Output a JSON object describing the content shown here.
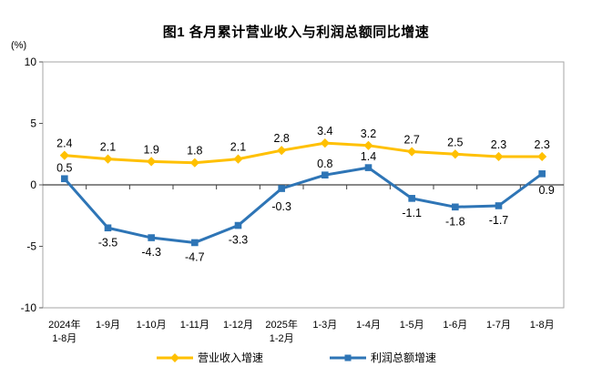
{
  "title": "图1  各月累计营业收入与利润总额同比增速",
  "axis_unit": "(%)",
  "chart_data": {
    "type": "line",
    "title": "图1  各月累计营业收入与利润总额同比增速",
    "ylabel": "(%)",
    "xlabel": "",
    "ylim": [
      -10,
      10
    ],
    "yticks": [
      10,
      5,
      0,
      -5,
      -10
    ],
    "grid": false,
    "legend_position": "bottom",
    "categories": [
      [
        "2024年",
        "1-8月"
      ],
      [
        "1-9月"
      ],
      [
        "1-10月"
      ],
      [
        "1-11月"
      ],
      [
        "1-12月"
      ],
      [
        "2025年",
        "1-2月"
      ],
      [
        "1-3月"
      ],
      [
        "1-4月"
      ],
      [
        "1-5月"
      ],
      [
        "1-6月"
      ],
      [
        "1-7月"
      ],
      [
        "1-8月"
      ]
    ],
    "series": [
      {
        "name": "营业收入增速",
        "color": "#FFC000",
        "marker": "diamond",
        "values": [
          2.4,
          2.1,
          1.9,
          1.8,
          2.1,
          2.8,
          3.4,
          3.2,
          2.7,
          2.5,
          2.3,
          2.3
        ]
      },
      {
        "name": "利润总额增速",
        "color": "#2E75B6",
        "marker": "square",
        "values": [
          0.5,
          -3.5,
          -4.3,
          -4.7,
          -3.3,
          -0.3,
          0.8,
          1.4,
          -1.1,
          -1.8,
          -1.7,
          0.9
        ]
      }
    ],
    "colors": {
      "plot_border": "#A6A6A6",
      "zero_axis": "#404040",
      "tick": "#595959",
      "text": "#000000"
    }
  }
}
